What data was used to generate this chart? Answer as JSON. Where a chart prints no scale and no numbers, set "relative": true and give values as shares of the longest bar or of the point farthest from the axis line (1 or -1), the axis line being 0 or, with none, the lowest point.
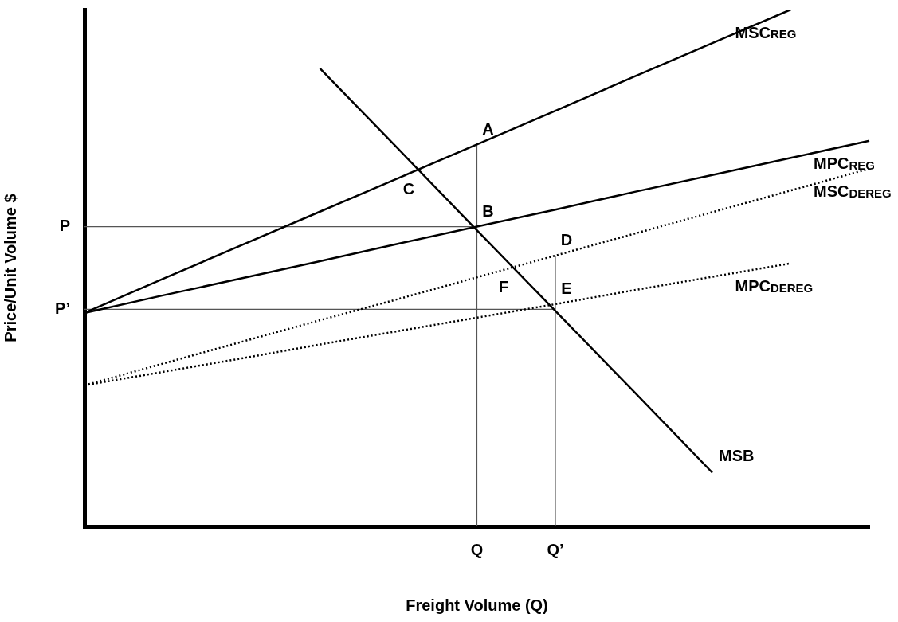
{
  "chart_data": {
    "type": "line",
    "relative": true,
    "xlabel": "Freight Volume (Q)",
    "ylabel": "Price/Unit Volume $",
    "legend": false,
    "grid": false,
    "categories": [
      null,
      null,
      null,
      null,
      null,
      "Q",
      "Q’",
      null,
      null,
      null,
      null
    ],
    "series": [
      {
        "name": "MSC$_{REG}$",
        "color": "#000000",
        "values": [
          0.413,
          0.479,
          0.544,
          0.609,
          0.674,
          0.739,
          0.804,
          0.87,
          0.935,
          1.0,
          null
        ],
        "line_style": "solid"
      },
      {
        "name": "MPC$_{REG}$",
        "color": "#000000",
        "values": [
          0.413,
          0.447,
          0.48,
          0.513,
          0.547,
          0.58,
          0.613,
          0.647,
          0.68,
          0.713,
          0.746
        ],
        "line_style": "solid"
      },
      {
        "name": "MSC$_{DEREG}$",
        "color": "#000000",
        "values": [
          0.273,
          0.315,
          0.357,
          0.399,
          0.44,
          0.482,
          0.524,
          0.566,
          0.608,
          0.65,
          0.692
        ],
        "line_style": "dotted"
      },
      {
        "name": "MPC$_{DEREG}$",
        "color": "#000000",
        "values": [
          0.273,
          0.299,
          0.325,
          0.352,
          0.378,
          0.404,
          0.43,
          0.457,
          0.483,
          0.509,
          null
        ],
        "line_style": "dotted"
      },
      {
        "name": "MSB",
        "color": "#000000",
        "values": [
          null,
          null,
          null,
          0.886,
          0.73,
          0.573,
          0.417,
          0.261,
          0.104,
          null,
          null
        ],
        "line_style": "solid"
      }
    ],
    "ref_lines": [
      {
        "axis": "y",
        "value": 0.58,
        "label": "P",
        "color": "#555555"
      },
      {
        "axis": "y",
        "value": 0.42,
        "label": "P’",
        "color": "#555555"
      },
      {
        "axis": "x",
        "value": "Q",
        "color": "#555555"
      },
      {
        "axis": "x",
        "value": "Q’",
        "color": "#555555"
      }
    ],
    "annotations": [
      {
        "text": "A",
        "x": "Q",
        "y": 0.739
      },
      {
        "text": "B",
        "x": "Q",
        "y": 0.58
      },
      "C",
      {
        "text": "D",
        "x": "Q’",
        "y": 0.524
      },
      {
        "text": "E",
        "x": "Q’",
        "y": 0.43
      },
      "F"
    ]
  }
}
